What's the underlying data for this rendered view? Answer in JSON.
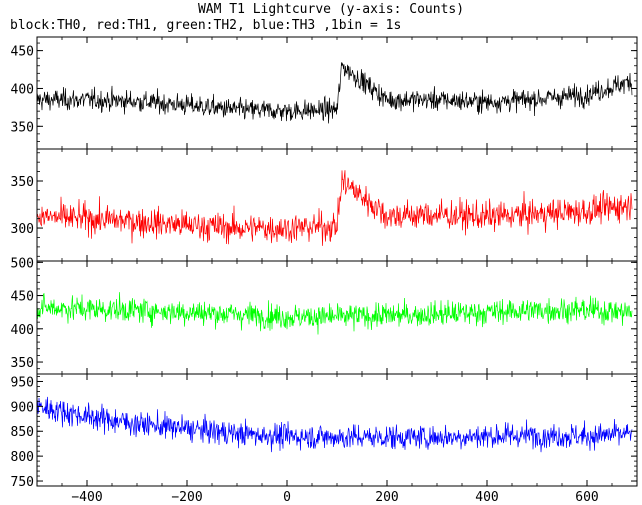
{
  "chart_data": {
    "type": "line",
    "title": "WAM T1 Lightcurve (y-axis: Counts)",
    "subtitle": "block:TH0, red:TH1, green:TH2, blue:TH3 ,1bin = 1s",
    "xlabel": "",
    "ylabel": "",
    "xlim": [
      -500,
      700
    ],
    "xticks": [
      -400,
      -200,
      0,
      200,
      400,
      600
    ],
    "grid": false,
    "panels": [
      {
        "name": "TH0",
        "color": "#000000",
        "ylim": [
          320,
          468
        ],
        "yticks": [
          350,
          400,
          450
        ],
        "x": [
          -500,
          -400,
          -300,
          -200,
          -100,
          0,
          100,
          110,
          200,
          300,
          400,
          500,
          600,
          690
        ],
        "values": [
          385,
          385,
          383,
          378,
          372,
          370,
          372,
          430,
          385,
          385,
          382,
          386,
          392,
          410
        ]
      },
      {
        "name": "TH1",
        "color": "#ff0000",
        "ylim": [
          265,
          384
        ],
        "yticks": [
          300,
          350
        ],
        "x": [
          -500,
          -400,
          -300,
          -200,
          -100,
          0,
          100,
          110,
          200,
          300,
          400,
          500,
          600,
          690
        ],
        "values": [
          312,
          310,
          307,
          303,
          300,
          300,
          302,
          350,
          313,
          314,
          312,
          315,
          318,
          325
        ]
      },
      {
        "name": "TH2",
        "color": "#00ff00",
        "ylim": [
          332,
          502
        ],
        "yticks": [
          350,
          400,
          450,
          500
        ],
        "x": [
          -500,
          -400,
          -300,
          -200,
          -100,
          0,
          100,
          200,
          300,
          400,
          500,
          600,
          690
        ],
        "values": [
          432,
          430,
          428,
          425,
          422,
          418,
          418,
          420,
          422,
          425,
          428,
          428,
          425
        ]
      },
      {
        "name": "TH3",
        "color": "#0000ff",
        "ylim": [
          740,
          965
        ],
        "yticks": [
          750,
          800,
          850,
          900,
          950
        ],
        "x": [
          -500,
          -400,
          -300,
          -200,
          -100,
          0,
          100,
          200,
          300,
          400,
          500,
          600,
          690
        ],
        "values": [
          900,
          880,
          865,
          855,
          845,
          840,
          838,
          838,
          838,
          840,
          842,
          840,
          845
        ]
      }
    ]
  }
}
